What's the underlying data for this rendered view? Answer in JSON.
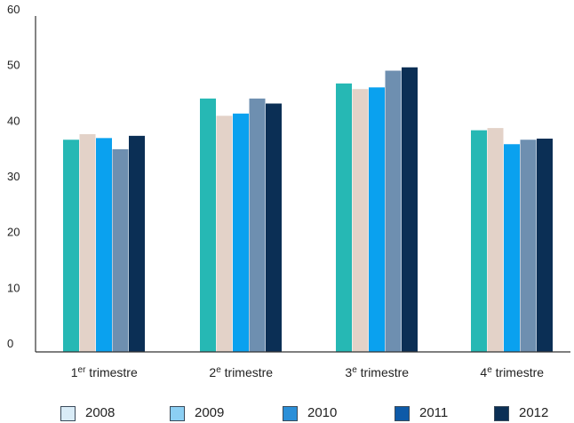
{
  "chart_data": {
    "type": "bar",
    "categories": [
      {
        "base": "1",
        "sup": "er",
        "rest": " trimestre"
      },
      {
        "base": "2",
        "sup": "e",
        "rest": " trimestre"
      },
      {
        "base": "3",
        "sup": "e",
        "rest": " trimestre"
      },
      {
        "base": "4",
        "sup": "e",
        "rest": " trimestre"
      }
    ],
    "series": [
      {
        "name": "2008",
        "color": "#26b8b4",
        "values": [
          38.1,
          45.5,
          48.2,
          39.8
        ]
      },
      {
        "name": "2009",
        "color": "#e3d2c8",
        "values": [
          39.1,
          42.4,
          47.2,
          40.2
        ]
      },
      {
        "name": "2010",
        "color": "#0aa1ef",
        "values": [
          38.4,
          42.8,
          47.5,
          37.3
        ]
      },
      {
        "name": "2011",
        "color": "#6e8fb0",
        "values": [
          36.4,
          45.5,
          50.5,
          38.1
        ]
      },
      {
        "name": "2012",
        "color": "#0b2f55",
        "values": [
          38.8,
          44.6,
          51.1,
          38.3
        ]
      }
    ],
    "legend": [
      {
        "label": "2008",
        "color": "#d9ecf7"
      },
      {
        "label": "2009",
        "color": "#8ccff3"
      },
      {
        "label": "2010",
        "color": "#2b8fd8"
      },
      {
        "label": "2011",
        "color": "#0d5aa8"
      },
      {
        "label": "2012",
        "color": "#0b2f55"
      }
    ],
    "yticks": [
      "0",
      "10",
      "20",
      "30",
      "40",
      "50",
      "60"
    ],
    "ylim": [
      0,
      60
    ],
    "grid": false,
    "legend_position": "bottom",
    "title": "",
    "xlabel": "",
    "ylabel": ""
  }
}
